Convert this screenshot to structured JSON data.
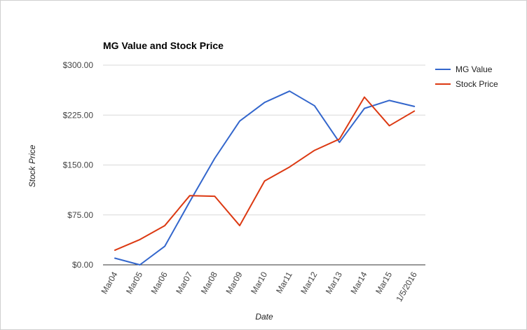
{
  "chart_data": {
    "type": "line",
    "title": "MG Value and Stock Price",
    "xlabel": "Date",
    "ylabel": "Stock Price",
    "categories": [
      "Mar04",
      "Mar05",
      "Mar06",
      "Mar07",
      "Mar08",
      "Mar09",
      "Mar10",
      "Mar11",
      "Mar12",
      "Mar13",
      "Mar14",
      "Mar15",
      "1/5/2016"
    ],
    "y_ticks": [
      "$0.00",
      "$75.00",
      "$150.00",
      "$225.00",
      "$300.00"
    ],
    "ylim": [
      0,
      300
    ],
    "grid": true,
    "legend_position": "right",
    "series": [
      {
        "name": "MG Value",
        "color": "#3366cc",
        "values": [
          10,
          0,
          28,
          95,
          160,
          216,
          244,
          261,
          239,
          184,
          235,
          247,
          238
        ]
      },
      {
        "name": "Stock Price",
        "color": "#dc3912",
        "values": [
          22,
          38,
          59,
          104,
          103,
          59,
          126,
          147,
          172,
          189,
          252,
          209,
          231
        ]
      }
    ]
  }
}
